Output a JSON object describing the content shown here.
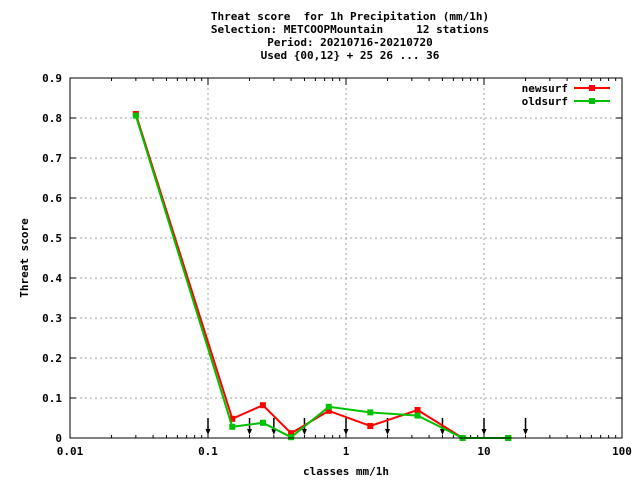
{
  "chart_data": {
    "type": "line",
    "title_lines": [
      "Threat score  for 1h Precipitation (mm/1h)",
      "Selection: METCOOPMountain     12 stations",
      "Period: 20210716-20210720",
      "Used {00,12} + 25 26 ... 36"
    ],
    "xlabel": "classes mm/1h",
    "ylabel": "Threat score",
    "xscale": "log",
    "xlim": [
      0.01,
      100
    ],
    "ylim": [
      0,
      0.9
    ],
    "xticks": [
      0.01,
      0.1,
      1,
      10,
      100
    ],
    "xtick_labels": [
      "0.01",
      "0.1",
      "1",
      "10",
      "100"
    ],
    "yticks": [
      0,
      0.1,
      0.2,
      0.3,
      0.4,
      0.5,
      0.6,
      0.7,
      0.8,
      0.9
    ],
    "ytick_labels": [
      "0",
      "0.1",
      "0.2",
      "0.3",
      "0.4",
      "0.5",
      "0.6",
      "0.7",
      "0.8",
      "0.9"
    ],
    "grid": true,
    "legend_position": "top-right",
    "series": [
      {
        "name": "newsurf",
        "color": "#ff0000",
        "x": [
          0.03,
          0.15,
          0.25,
          0.4,
          0.75,
          1.5,
          3.3,
          7,
          15
        ],
        "y": [
          0.81,
          0.048,
          0.082,
          0.012,
          0.068,
          0.03,
          0.07,
          0.0,
          0.0
        ]
      },
      {
        "name": "oldsurf",
        "color": "#00c000",
        "x": [
          0.03,
          0.15,
          0.25,
          0.4,
          0.75,
          1.5,
          3.3,
          7,
          15
        ],
        "y": [
          0.806,
          0.028,
          0.038,
          0.002,
          0.078,
          0.064,
          0.056,
          0.0,
          0.0
        ]
      }
    ],
    "threshold_markers_x": [
      0.1,
      0.2,
      0.3,
      0.5,
      1,
      2,
      5,
      10,
      20
    ]
  }
}
